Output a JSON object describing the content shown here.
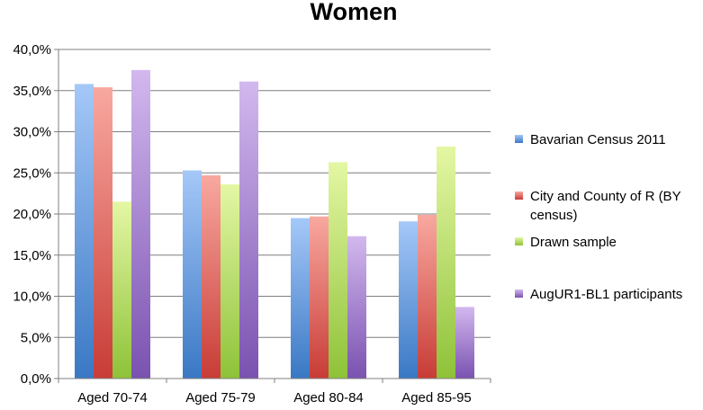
{
  "chart_data": {
    "type": "bar",
    "title": "Women",
    "xlabel": "",
    "ylabel": "",
    "ylim": [
      0,
      40
    ],
    "ytick_step": 5,
    "ytick_labels": [
      "0,0%",
      "5,0%",
      "10,0%",
      "15,0%",
      "20,0%",
      "25,0%",
      "30,0%",
      "35,0%",
      "40,0%"
    ],
    "grid": true,
    "legend_position": "right",
    "categories": [
      "Aged 70-74",
      "Aged 75-79",
      "Aged 80-84",
      "Aged 85-95"
    ],
    "series": [
      {
        "name": "Bavarian Census 2011",
        "color_light": "#a5c8f8",
        "color_dark": "#3a78c4",
        "values": [
          35.8,
          25.3,
          19.5,
          19.1
        ]
      },
      {
        "name": "City and County of R (BY census)",
        "legend_lines": [
          "City and County of R (BY",
          "census)"
        ],
        "color_light": "#f8a8a0",
        "color_dark": "#c83c36",
        "values": [
          35.4,
          24.7,
          19.7,
          19.9
        ]
      },
      {
        "name": "Drawn sample",
        "color_light": "#e4f7a4",
        "color_dark": "#8ec238",
        "values": [
          21.5,
          23.6,
          26.3,
          28.2
        ]
      },
      {
        "name": "AugUR1-BL1 participants",
        "color_light": "#d2b8ee",
        "color_dark": "#7a52b0",
        "values": [
          37.5,
          36.1,
          17.3,
          8.7
        ]
      }
    ]
  }
}
